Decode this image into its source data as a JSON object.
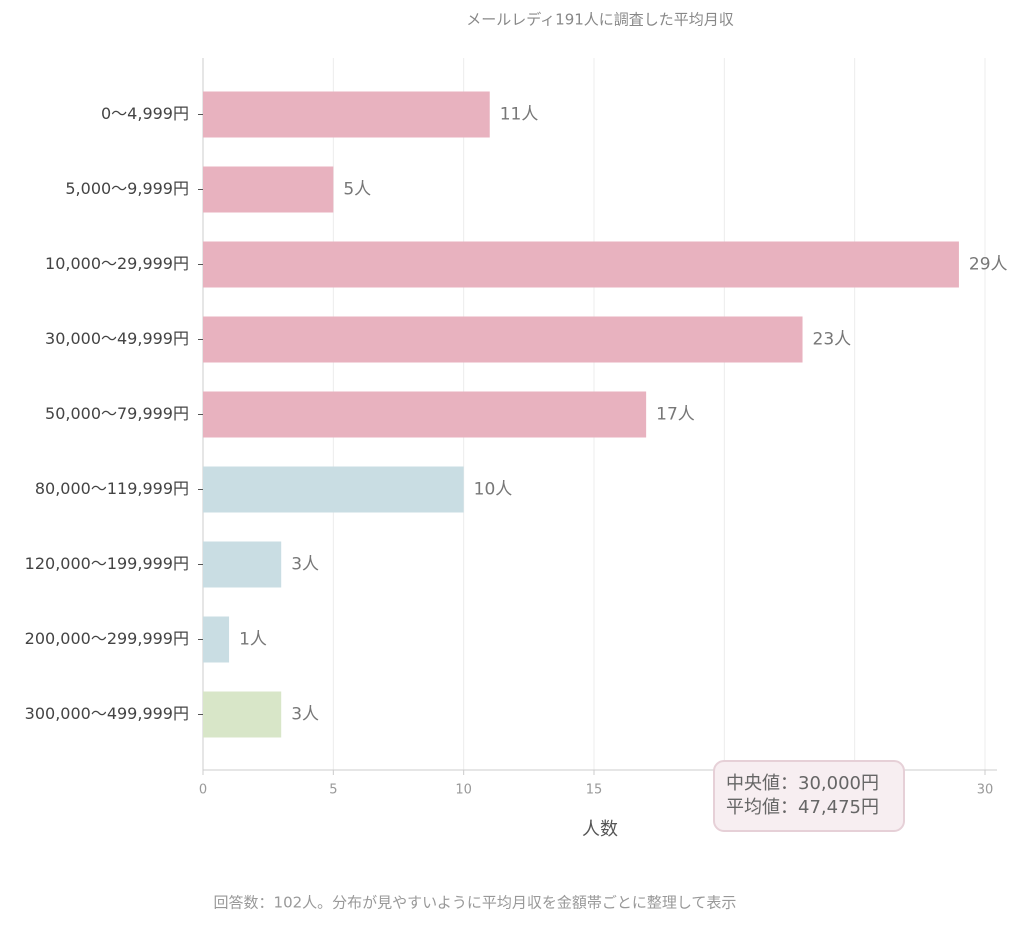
{
  "chart_data": {
    "type": "barh",
    "title": "メールレディ191人に調査した平均月収",
    "categories": [
      "0〜4,999円",
      "5,000〜9,999円",
      "10,000〜29,999円",
      "30,000〜49,999円",
      "50,000〜79,999円",
      "80,000〜119,999円",
      "120,000〜199,999円",
      "200,000〜299,999円",
      "300,000〜499,999円"
    ],
    "values": [
      11,
      5,
      29,
      23,
      17,
      10,
      3,
      1,
      3
    ],
    "value_labels": [
      "11人",
      "5人",
      "29人",
      "23人",
      "17人",
      "10人",
      "3人",
      "1人",
      "3人"
    ],
    "colors": [
      "#e8b2bf",
      "#e8b2bf",
      "#e8b2bf",
      "#e8b2bf",
      "#e8b2bf",
      "#c9dde3",
      "#c9dde3",
      "#c9dde3",
      "#d8e6c8"
    ],
    "xlim": [
      0,
      30
    ],
    "xticks": [
      0,
      5,
      10,
      15,
      20,
      25,
      30
    ],
    "grid": true,
    "x_label": "人数",
    "annotation": [
      "中央値：30,000円",
      "平均値：47,475円"
    ],
    "footnote": "回答数：102人。分布が見やすいように平均月収を金額帯ごとに整理して表示"
  }
}
